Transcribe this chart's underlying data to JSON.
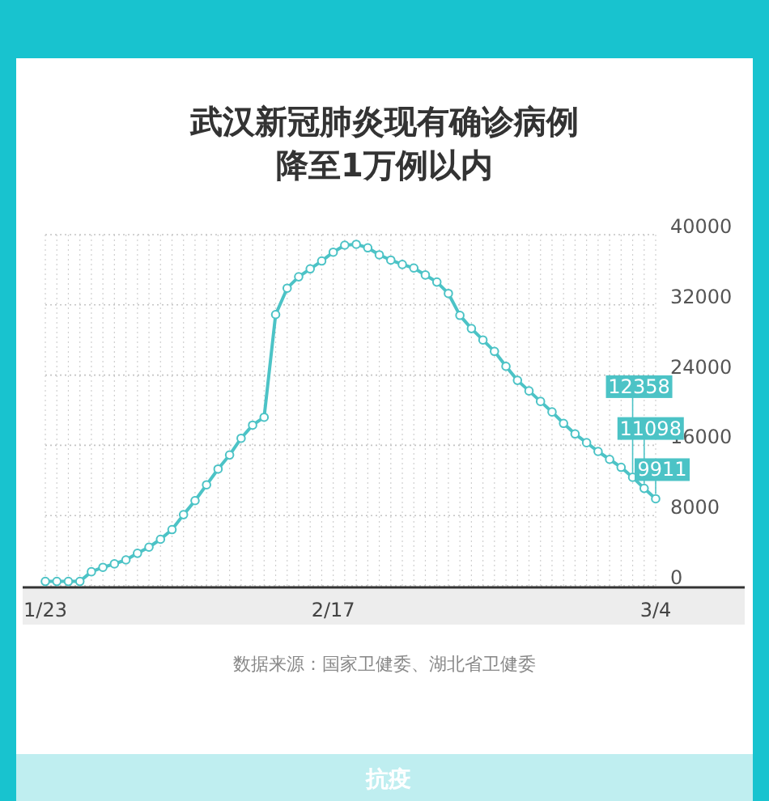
{
  "chart_data": {
    "type": "line",
    "title": "武汉新冠肺炎现有确诊病例",
    "subtitle": "降至1万例以内",
    "categories": [
      "1/23",
      null,
      null,
      null,
      null,
      null,
      null,
      null,
      null,
      null,
      null,
      null,
      null,
      null,
      null,
      null,
      null,
      null,
      null,
      null,
      null,
      null,
      null,
      null,
      null,
      "2/17",
      null,
      null,
      null,
      null,
      null,
      null,
      null,
      null,
      null,
      null,
      null,
      null,
      null,
      null,
      null,
      null,
      null,
      null,
      null,
      null,
      null,
      null,
      null,
      null,
      null,
      null,
      null,
      "3/4"
    ],
    "series": [
      {
        "color": "#4cc3c6",
        "values": [
          500,
          500,
          500,
          500,
          1600,
          2100,
          2500,
          2950,
          3700,
          4400,
          5300,
          6400,
          8100,
          9700,
          11500,
          13300,
          14900,
          16800,
          18300,
          19200,
          30900,
          33900,
          35200,
          36100,
          37000,
          38000,
          38800,
          38900,
          38500,
          37700,
          37100,
          36600,
          36200,
          35400,
          34600,
          33300,
          30800,
          29300,
          28000,
          26700,
          25000,
          23400,
          22200,
          21000,
          19800,
          18500,
          17300,
          16300,
          15300,
          14400,
          13500,
          12358,
          11098,
          9911
        ],
        "value_labels": [
          null,
          null,
          null,
          null,
          null,
          null,
          null,
          null,
          null,
          null,
          null,
          null,
          null,
          null,
          null,
          null,
          null,
          null,
          null,
          null,
          null,
          null,
          null,
          null,
          null,
          null,
          null,
          null,
          null,
          null,
          null,
          null,
          null,
          null,
          null,
          null,
          null,
          null,
          null,
          null,
          null,
          null,
          null,
          null,
          null,
          null,
          null,
          null,
          null,
          null,
          null,
          "12358",
          "11098",
          "9911"
        ]
      }
    ],
    "ylim": [
      0,
      40000
    ],
    "yticks": [
      0,
      8000,
      16000,
      24000,
      32000,
      40000
    ],
    "grid": true,
    "marker": "circle",
    "line_style": "solid",
    "annotations": [
      "数据来源：国家卫健委、湖北省卫健委",
      "抗疫"
    ]
  }
}
